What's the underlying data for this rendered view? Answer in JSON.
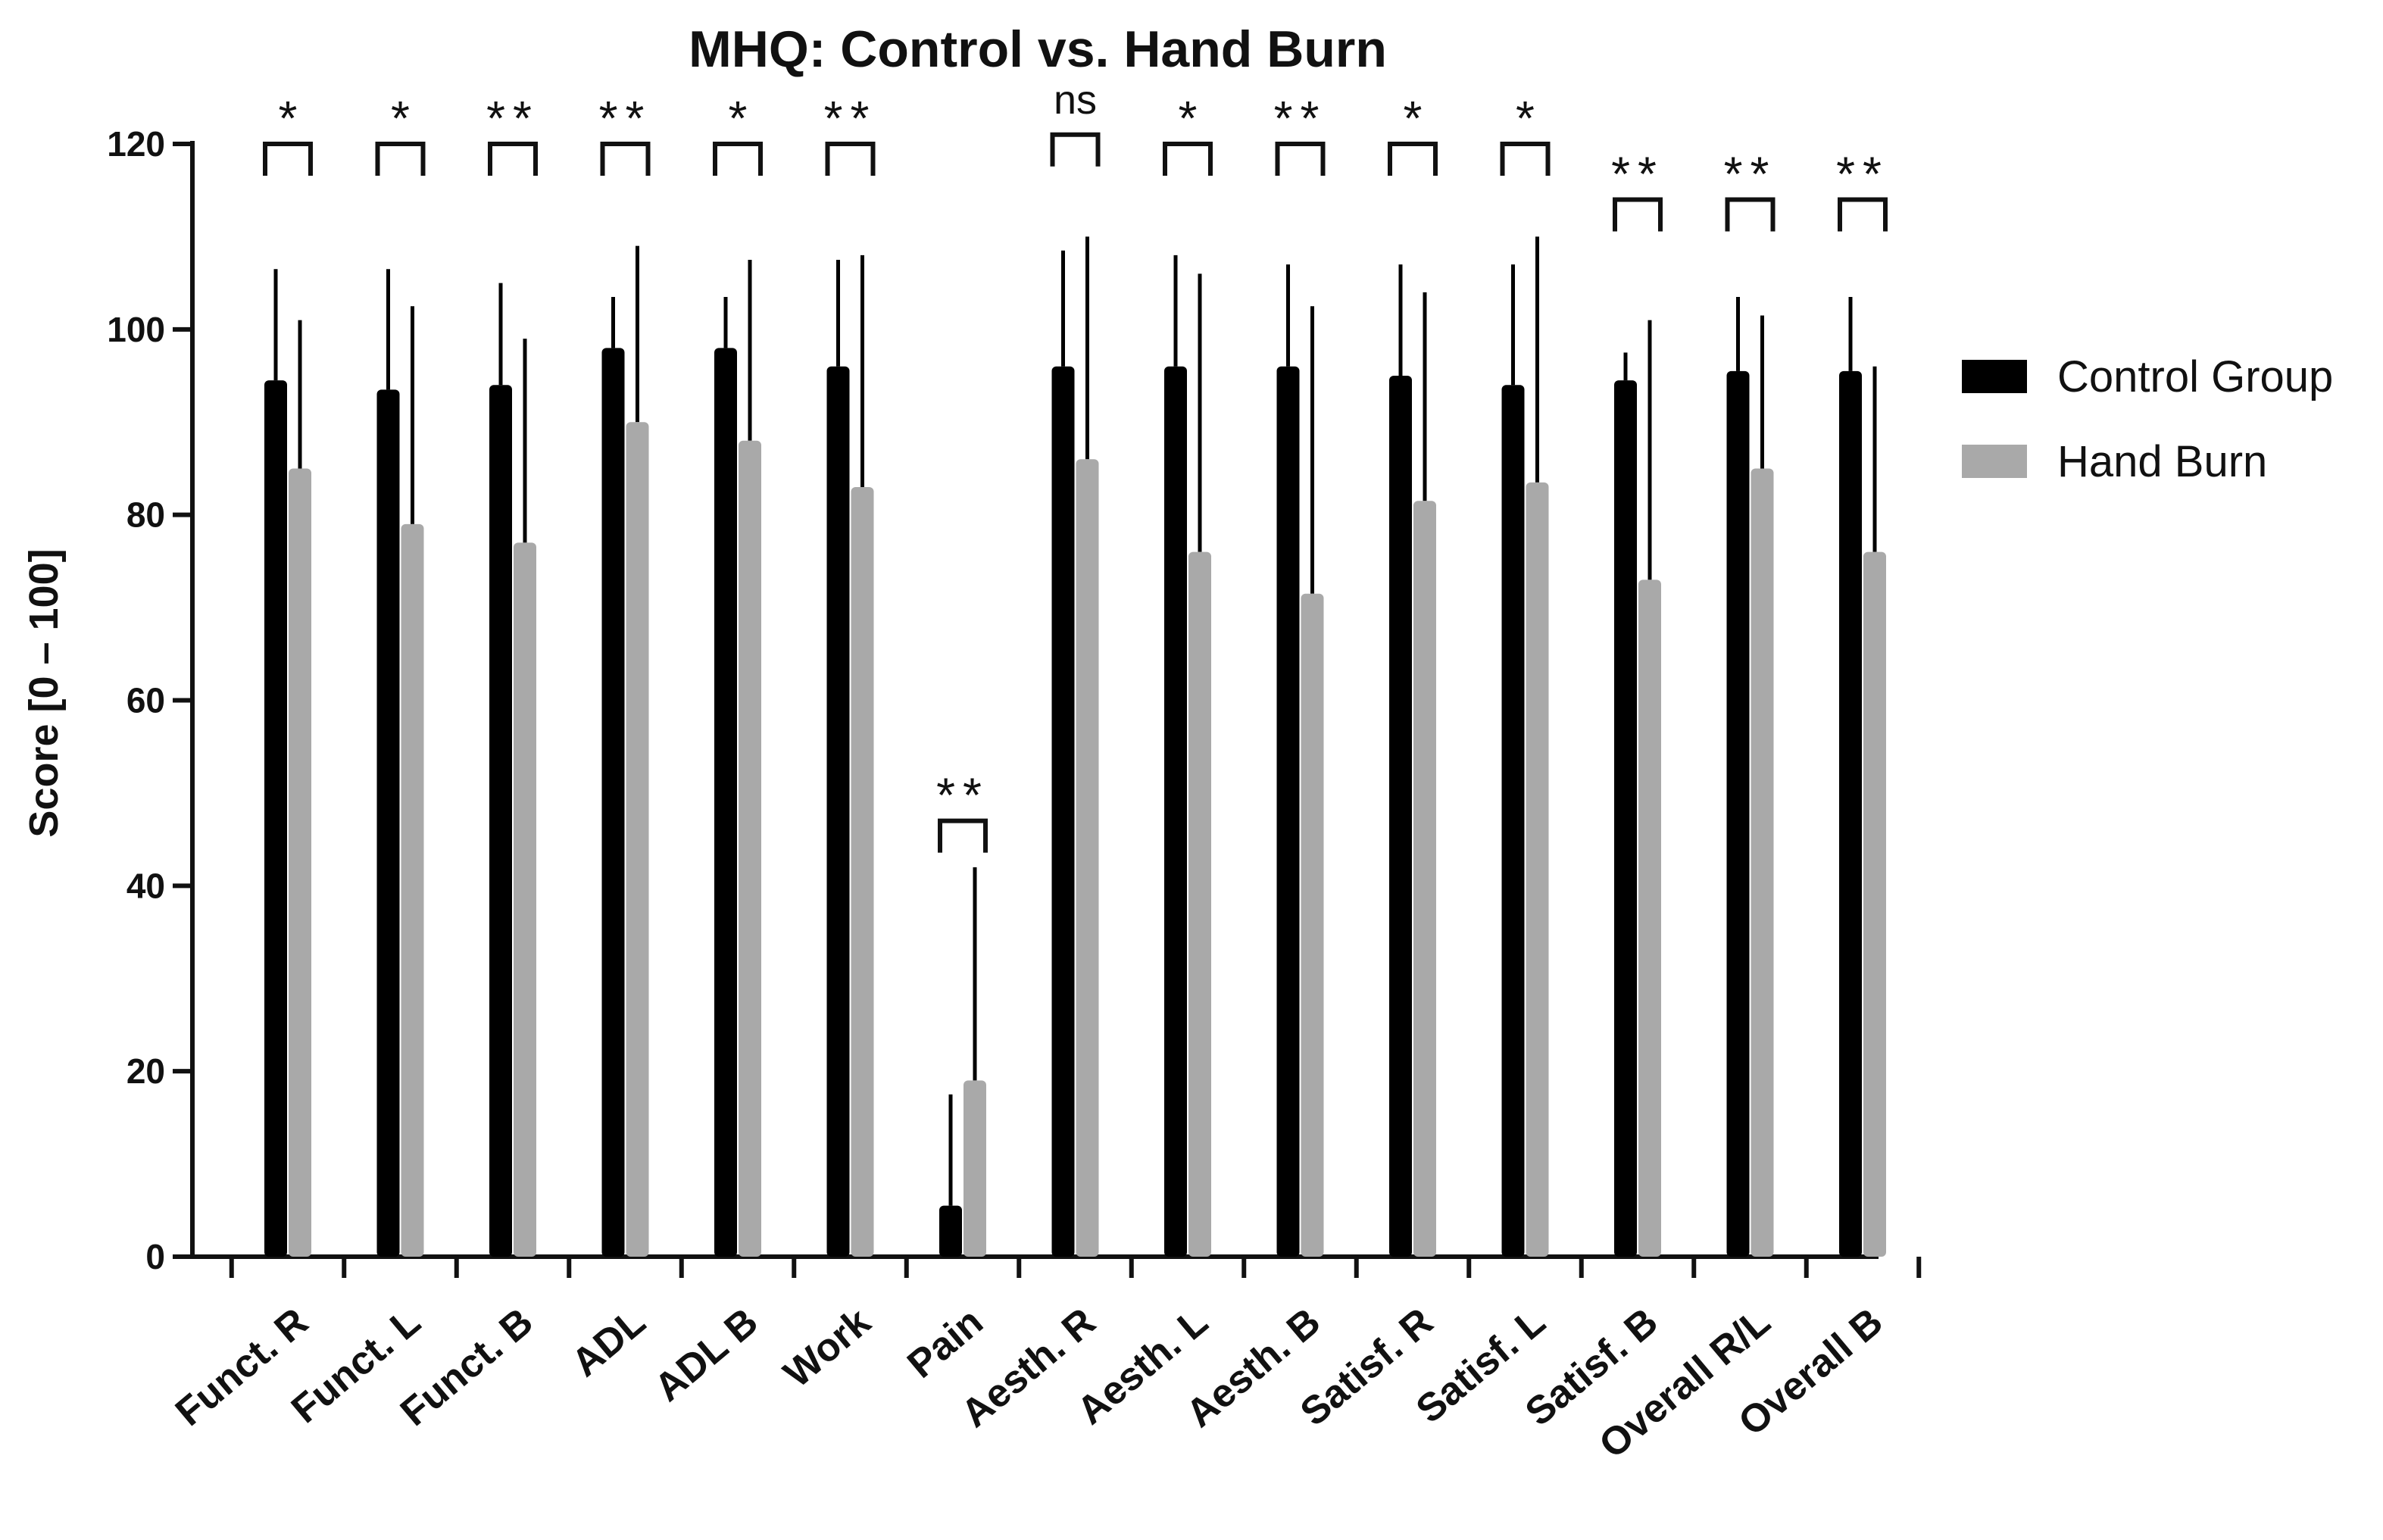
{
  "chart_data": {
    "type": "bar",
    "title": "MHQ: Control vs. Hand Burn",
    "ylabel": "Score [0 – 100]",
    "xlabel": "",
    "ylim": [
      0,
      120
    ],
    "yticks": [
      0,
      20,
      40,
      60,
      80,
      100,
      120
    ],
    "ytick_labels": [
      "0",
      "20",
      "40",
      "60",
      "80",
      "100",
      "120"
    ],
    "categories": [
      "Funct. R",
      "Funct. L",
      "Funct. B",
      "ADL",
      "ADL B",
      "Work",
      "Pain",
      "Aesth. R",
      "Aesth. L",
      "Aesth. B",
      "Satisf. R",
      "Satisf. L",
      "Satisf. B",
      "Overall R/L",
      "Overall B"
    ],
    "series": [
      {
        "name": "Control Group",
        "color": "#000000",
        "values": [
          94.5,
          93.5,
          94,
          98,
          98,
          96,
          5.5,
          96,
          96,
          96,
          95,
          94,
          94.5,
          95.5,
          95.5
        ],
        "error_upper": [
          106.5,
          106.5,
          105,
          103.5,
          103.5,
          107.5,
          17.5,
          108.5,
          108,
          107,
          107,
          107,
          97.5,
          103.5,
          103.5
        ]
      },
      {
        "name": "Hand Burn",
        "color": "#a9a9a9",
        "values": [
          85,
          79,
          77,
          90,
          88,
          83,
          19,
          86,
          76,
          71.5,
          81.5,
          83.5,
          73,
          85,
          76
        ],
        "error_upper": [
          101,
          102.5,
          99,
          109,
          107.5,
          108,
          42,
          110,
          106,
          102.5,
          104,
          110,
          101,
          101.5,
          96
        ]
      }
    ],
    "significance": [
      "*",
      "*",
      "**",
      "**",
      "*",
      "**",
      "**",
      "ns",
      "*",
      "**",
      "*",
      "*",
      "**",
      "**",
      "**"
    ],
    "significance_level": [
      120,
      120,
      120,
      120,
      120,
      120,
      47,
      121,
      120,
      120,
      120,
      120,
      114,
      114,
      114
    ],
    "legend_position": "right",
    "grid": false
  }
}
